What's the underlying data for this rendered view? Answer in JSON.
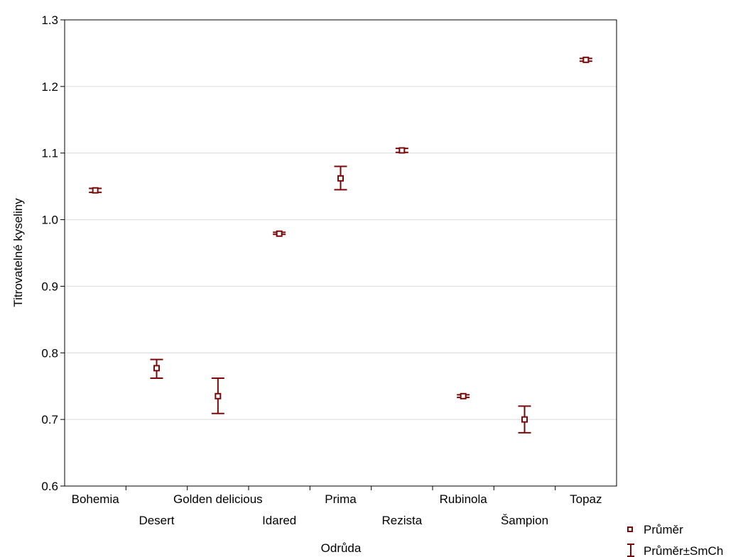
{
  "chart_data": {
    "type": "scatter",
    "xlabel": "Odrůda",
    "ylabel": "Titrovatelné kyseliny",
    "ylim": [
      0.6,
      1.3
    ],
    "yticks": [
      "0.6",
      "0.7",
      "0.8",
      "0.9",
      "1.0",
      "1.1",
      "1.2",
      "1.3"
    ],
    "grid": true,
    "legend_position": "bottom-right",
    "marker_color": "#7a0a0a",
    "categories": [
      "Bohemia",
      "Desert",
      "Golden delicious",
      "Idared",
      "Prima",
      "Rezista",
      "Rubinola",
      "Šampion",
      "Topaz"
    ],
    "series": [
      {
        "name": "Průměr",
        "values": [
          1.044,
          0.777,
          0.735,
          0.979,
          1.062,
          1.104,
          0.735,
          0.7,
          1.24
        ]
      },
      {
        "name": "Průměr±SmCh",
        "lower": [
          1.041,
          0.762,
          0.709,
          0.978,
          1.045,
          1.101,
          0.733,
          0.68,
          1.238
        ],
        "upper": [
          1.047,
          0.79,
          0.762,
          0.981,
          1.08,
          1.107,
          0.737,
          0.72,
          1.242
        ]
      }
    ]
  }
}
